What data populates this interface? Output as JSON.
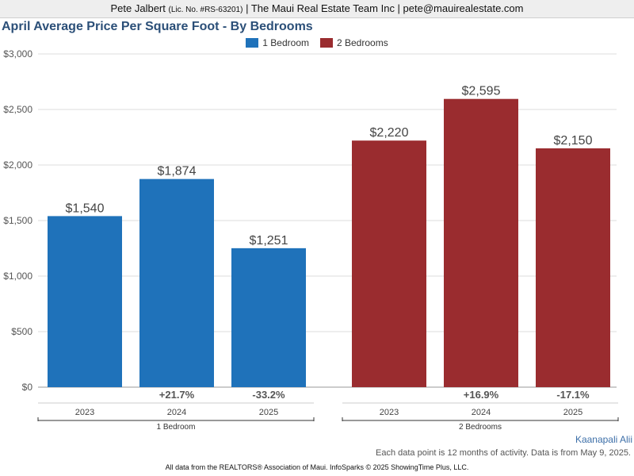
{
  "header": {
    "agent": "Pete Jalbert",
    "license": "(Lic. No. #RS-63201)",
    "rest": "| The Maui Real Estate Team Inc | pete@mauirealestate.com"
  },
  "chart_data": {
    "type": "bar",
    "title": "April Average Price Per Square Foot - By Bedrooms",
    "xlabel": "",
    "ylabel": "",
    "ylim": [
      0,
      3000
    ],
    "yticks": [
      "$0",
      "$500",
      "$1,000",
      "$1,500",
      "$2,000",
      "$2,500",
      "$3,000"
    ],
    "grid": true,
    "legend_position": "top-center",
    "groups": [
      {
        "name": "1 Bedroom",
        "color": "#1f72ba",
        "categories": [
          "2023",
          "2024",
          "2025"
        ],
        "values": [
          1540,
          1874,
          1251
        ],
        "value_labels": [
          "$1,540",
          "$1,874",
          "$1,251"
        ],
        "changes": [
          "",
          "+21.7%",
          "-33.2%"
        ]
      },
      {
        "name": "2 Bedrooms",
        "color": "#9a2c2f",
        "categories": [
          "2023",
          "2024",
          "2025"
        ],
        "values": [
          2220,
          2595,
          2150
        ],
        "value_labels": [
          "$2,220",
          "$2,595",
          "$2,150"
        ],
        "changes": [
          "",
          "+16.9%",
          "-17.1%"
        ]
      }
    ]
  },
  "legend": {
    "items": [
      {
        "label": "1 Bedroom",
        "color": "#1f72ba"
      },
      {
        "label": "2 Bedrooms",
        "color": "#9a2c2f"
      }
    ]
  },
  "footer": {
    "location": "Kaanapali Alii",
    "note": "Each data point is 12 months of activity. Data is from May 9, 2025.",
    "source": "All data from the REALTORS® Association of Maui. InfoSparks © 2025 ShowingTime Plus, LLC."
  }
}
